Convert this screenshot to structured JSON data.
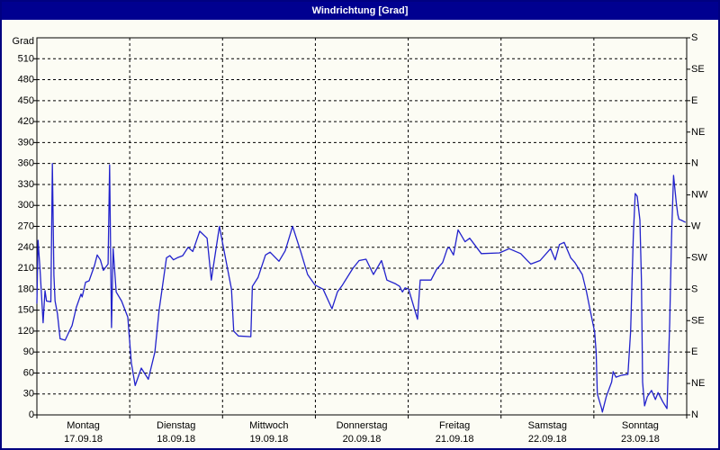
{
  "window": {
    "title": "Windrichtung [Grad]"
  },
  "colors": {
    "title_bar": "#000090",
    "title_text": "#FFFFFF",
    "window_border": "#000080",
    "background": "#FCFCF4",
    "plot_frame": "#000000",
    "grid": "#000000",
    "line": "#2222CC",
    "text": "#000000"
  },
  "y_axis": {
    "label": "Grad",
    "min": 0,
    "max": 540,
    "step": 30,
    "tick_labels": [
      "0",
      "30",
      "60",
      "90",
      "120",
      "150",
      "180",
      "210",
      "240",
      "270",
      "300",
      "330",
      "360",
      "390",
      "420",
      "450",
      "480",
      "510"
    ]
  },
  "right_axis": {
    "ticks": [
      {
        "deg": 0,
        "label": "N"
      },
      {
        "deg": 45,
        "label": "NE"
      },
      {
        "deg": 90,
        "label": "E"
      },
      {
        "deg": 135,
        "label": "SE"
      },
      {
        "deg": 180,
        "label": "S"
      },
      {
        "deg": 225,
        "label": "SW"
      },
      {
        "deg": 270,
        "label": "W"
      },
      {
        "deg": 315,
        "label": "NW"
      },
      {
        "deg": 360,
        "label": "N"
      },
      {
        "deg": 405,
        "label": "NE"
      },
      {
        "deg": 450,
        "label": "E"
      },
      {
        "deg": 495,
        "label": "SE"
      },
      {
        "deg": 540,
        "label": "S"
      }
    ]
  },
  "x_axis": {
    "days": [
      {
        "name": "Montag",
        "date": "17.09.18"
      },
      {
        "name": "Dienstag",
        "date": "18.09.18"
      },
      {
        "name": "Mittwoch",
        "date": "19.09.18"
      },
      {
        "name": "Donnerstag",
        "date": "20.09.18"
      },
      {
        "name": "Freitag",
        "date": "21.09.18"
      },
      {
        "name": "Samstag",
        "date": "22.09.18"
      },
      {
        "name": "Sonntag",
        "date": "23.09.18"
      }
    ]
  },
  "chart_data": {
    "type": "line",
    "title": "Windrichtung [Grad]",
    "ylabel": "Grad",
    "ylim": [
      0,
      540
    ],
    "y_grid_step_deg": 30,
    "right_axis_step_deg": 45,
    "xlim_hours": [
      0,
      168
    ],
    "x_unit": "hours since Montag 17.09.18 00:00, one vertical gridline per day",
    "grid": true,
    "legend": "none",
    "series": [
      {
        "name": "Windrichtung",
        "color": "#2222CC",
        "points": [
          [
            0,
            160
          ],
          [
            0.3,
            250
          ],
          [
            0.8,
            210
          ],
          [
            1.2,
            170
          ],
          [
            1.6,
            132
          ],
          [
            2.1,
            178
          ],
          [
            2.5,
            163
          ],
          [
            3.6,
            162
          ],
          [
            4.0,
            360
          ],
          [
            4.4,
            200
          ],
          [
            4.7,
            163
          ],
          [
            5.3,
            145
          ],
          [
            6.0,
            109
          ],
          [
            7.3,
            107
          ],
          [
            8.4,
            120
          ],
          [
            9.1,
            128
          ],
          [
            10.2,
            154
          ],
          [
            11.4,
            173
          ],
          [
            11.7,
            169
          ],
          [
            12.6,
            190
          ],
          [
            13.5,
            192
          ],
          [
            14.9,
            214
          ],
          [
            15.6,
            229
          ],
          [
            16.4,
            222
          ],
          [
            17.2,
            207
          ],
          [
            18.4,
            216
          ],
          [
            18.8,
            358
          ],
          [
            19.3,
            125
          ],
          [
            19.7,
            238
          ],
          [
            20.5,
            176
          ],
          [
            21.9,
            163
          ],
          [
            23.5,
            140
          ],
          [
            24.4,
            75
          ],
          [
            25.4,
            42
          ],
          [
            27.0,
            67
          ],
          [
            28.8,
            51
          ],
          [
            30.5,
            90
          ],
          [
            31.6,
            150
          ],
          [
            33.5,
            225
          ],
          [
            34.4,
            228
          ],
          [
            35.3,
            222
          ],
          [
            36.3,
            225
          ],
          [
            37.7,
            228
          ],
          [
            39.1,
            240
          ],
          [
            40.3,
            234
          ],
          [
            42.1,
            263
          ],
          [
            44.0,
            253
          ],
          [
            45.1,
            193
          ],
          [
            45.6,
            212
          ],
          [
            47.2,
            270
          ],
          [
            48.4,
            235
          ],
          [
            50.3,
            180
          ],
          [
            50.9,
            120
          ],
          [
            52.1,
            113
          ],
          [
            55.3,
            112
          ],
          [
            55.7,
            184
          ],
          [
            57.2,
            197
          ],
          [
            59.1,
            229
          ],
          [
            60.3,
            233
          ],
          [
            62.6,
            220
          ],
          [
            64.2,
            235
          ],
          [
            66.1,
            270
          ],
          [
            68.2,
            234
          ],
          [
            70.0,
            201
          ],
          [
            71.9,
            186
          ],
          [
            74.0,
            180
          ],
          [
            76.3,
            152
          ],
          [
            77.7,
            176
          ],
          [
            79.0,
            186
          ],
          [
            81.7,
            210
          ],
          [
            83.3,
            221
          ],
          [
            85.1,
            223
          ],
          [
            87.0,
            201
          ],
          [
            89.1,
            221
          ],
          [
            90.5,
            193
          ],
          [
            92.6,
            188
          ],
          [
            93.8,
            184
          ],
          [
            94.5,
            176
          ],
          [
            95.2,
            182
          ],
          [
            96.1,
            180
          ],
          [
            98.4,
            137
          ],
          [
            99.1,
            193
          ],
          [
            101.9,
            193
          ],
          [
            103.3,
            208
          ],
          [
            104.9,
            218
          ],
          [
            106.1,
            238
          ],
          [
            106.6,
            240
          ],
          [
            107.7,
            229
          ],
          [
            108.9,
            265
          ],
          [
            110.7,
            248
          ],
          [
            111.9,
            253
          ],
          [
            114.9,
            231
          ],
          [
            119.6,
            232
          ],
          [
            122.1,
            238
          ],
          [
            125.1,
            231
          ],
          [
            126.6,
            222
          ],
          [
            127.7,
            216
          ],
          [
            130.1,
            221
          ],
          [
            132.8,
            238
          ],
          [
            134.0,
            222
          ],
          [
            135.1,
            244
          ],
          [
            136.3,
            247
          ],
          [
            138.0,
            225
          ],
          [
            139.1,
            218
          ],
          [
            141.0,
            201
          ],
          [
            142.1,
            176
          ],
          [
            142.9,
            154
          ],
          [
            144.2,
            119
          ],
          [
            144.6,
            90
          ],
          [
            144.9,
            30
          ],
          [
            146.0,
            9
          ],
          [
            146.2,
            4
          ],
          [
            147.2,
            26
          ],
          [
            148.6,
            47
          ],
          [
            149.0,
            62
          ],
          [
            149.7,
            54
          ],
          [
            151.2,
            57
          ],
          [
            152.8,
            58
          ],
          [
            153.5,
            120
          ],
          [
            154.2,
            257
          ],
          [
            154.7,
            317
          ],
          [
            155.2,
            313
          ],
          [
            155.9,
            279
          ],
          [
            156.3,
            193
          ],
          [
            156.6,
            47
          ],
          [
            157.1,
            13
          ],
          [
            157.8,
            26
          ],
          [
            158.9,
            35
          ],
          [
            159.9,
            22
          ],
          [
            160.6,
            32
          ],
          [
            161.8,
            19
          ],
          [
            162.9,
            9
          ],
          [
            163.6,
            131
          ],
          [
            164.1,
            257
          ],
          [
            164.6,
            343
          ],
          [
            165.3,
            304
          ],
          [
            165.7,
            287
          ],
          [
            166.0,
            280
          ],
          [
            166.5,
            279
          ],
          [
            167.6,
            276
          ]
        ]
      }
    ]
  }
}
